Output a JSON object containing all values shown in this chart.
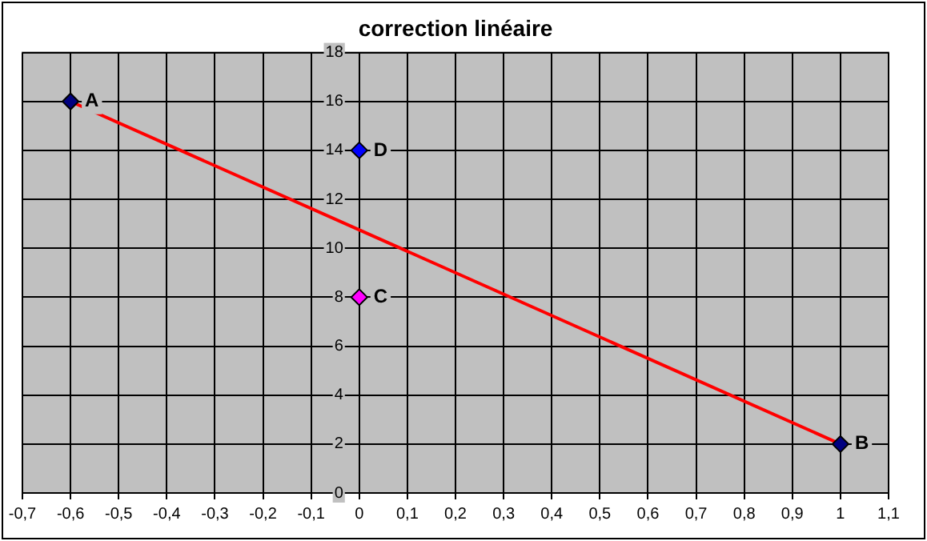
{
  "chart_data": {
    "type": "scatter",
    "title": "correction linéaire",
    "series": [
      {
        "type": "line",
        "x": [
          -0.6,
          1
        ],
        "values": [
          16,
          2
        ],
        "color": "#ff0000",
        "marker": "none"
      },
      {
        "type": "scatter",
        "x": [
          -0.6,
          1,
          0,
          0
        ],
        "values": [
          16,
          2,
          14,
          8
        ],
        "colors": [
          "#000080",
          "#000080",
          "#0000ff",
          "#ff00ff"
        ],
        "marker": "diamond"
      }
    ],
    "xlim": [
      -0.7,
      1.1
    ],
    "xticks": [
      {
        "value": -0.7,
        "label": "-0,7"
      },
      {
        "value": -0.6,
        "label": "-0,6"
      },
      {
        "value": -0.5,
        "label": "-0,5"
      },
      {
        "value": -0.4,
        "label": "-0,4"
      },
      {
        "value": -0.3,
        "label": "-0,3"
      },
      {
        "value": -0.2,
        "label": "-0,2"
      },
      {
        "value": -0.1,
        "label": "-0,1"
      },
      0,
      {
        "value": 0.1,
        "label": "0,1"
      },
      {
        "value": 0.2,
        "label": "0,2"
      },
      {
        "value": 0.3,
        "label": "0,3"
      },
      {
        "value": 0.4,
        "label": "0,4"
      },
      {
        "value": 0.5,
        "label": "0,5"
      },
      {
        "value": 0.6,
        "label": "0,6"
      },
      {
        "value": 0.7,
        "label": "0,7"
      },
      {
        "value": 0.8,
        "label": "0,8"
      },
      {
        "value": 0.9,
        "label": "0,9"
      },
      1,
      {
        "value": 1.1,
        "label": "1,1"
      }
    ],
    "ylim": [
      0,
      18
    ],
    "yticks": [
      0,
      2,
      4,
      6,
      8,
      10,
      12,
      14,
      16,
      18
    ],
    "grid": true,
    "legend": false,
    "annotations": [
      {
        "text": "A",
        "x": -0.6,
        "y": 16
      },
      {
        "text": "B",
        "x": 1,
        "y": 2
      },
      {
        "text": "C",
        "x": 0,
        "y": 8
      },
      {
        "text": "D",
        "x": 0,
        "y": 14
      }
    ]
  }
}
